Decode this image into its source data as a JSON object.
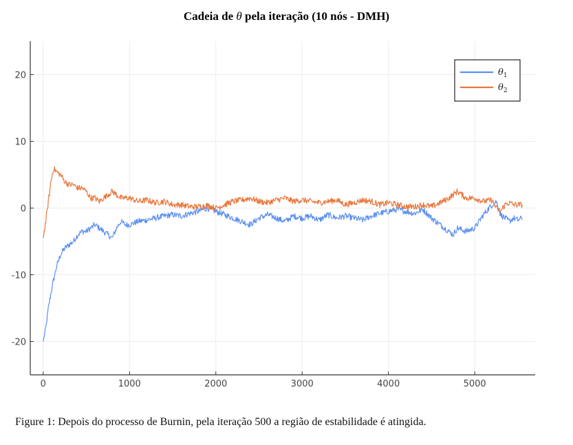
{
  "title_prefix": "Cadeia de ",
  "title_symbol": "θ",
  "title_suffix": " pela iteração (10 nós - DMH)",
  "caption": "Figure 1: Depois do processo de Burnin, pela iteração 500 a região de estabilidade é atingida.",
  "chart_data": {
    "type": "line",
    "title": "Cadeia de θ pela iteração (10 nós - DMH)",
    "xlabel": "",
    "ylabel": "",
    "xlim": [
      -150,
      5700
    ],
    "ylim": [
      -25,
      25
    ],
    "xticks": [
      0,
      1000,
      2000,
      3000,
      4000,
      5000
    ],
    "yticks": [
      -20,
      -10,
      0,
      10,
      20
    ],
    "grid": true,
    "legend_position": "top-right",
    "series": [
      {
        "name": "θ1",
        "name_symbol": "θ",
        "name_sub": "1",
        "color": "#5b8ff0",
        "x": [
          0,
          30,
          60,
          100,
          150,
          200,
          250,
          300,
          350,
          400,
          450,
          500,
          550,
          600,
          650,
          700,
          750,
          800,
          850,
          900,
          950,
          1000,
          1100,
          1200,
          1300,
          1400,
          1500,
          1600,
          1700,
          1800,
          1900,
          2000,
          2100,
          2200,
          2300,
          2400,
          2500,
          2600,
          2700,
          2800,
          2900,
          3000,
          3100,
          3200,
          3300,
          3400,
          3500,
          3600,
          3700,
          3800,
          3900,
          4000,
          4100,
          4200,
          4300,
          4400,
          4500,
          4600,
          4700,
          4750,
          4800,
          4900,
          5000,
          5100,
          5200,
          5250,
          5300,
          5350,
          5400,
          5450,
          5500,
          5550
        ],
        "y": [
          -20,
          -18,
          -15,
          -12,
          -9,
          -7,
          -6,
          -5.5,
          -5,
          -4,
          -3.5,
          -3.5,
          -3,
          -2.5,
          -3,
          -3.5,
          -4,
          -4.5,
          -3,
          -2,
          -2.5,
          -2.5,
          -2,
          -1.8,
          -1.5,
          -1.2,
          -1,
          -1.2,
          -0.8,
          -0.5,
          0,
          -0.5,
          -1,
          -1.5,
          -2,
          -2.5,
          -1.5,
          -1,
          -1.5,
          -2,
          -1.2,
          -1.5,
          -1.2,
          -1.8,
          -1,
          -1.5,
          -1.2,
          -1.5,
          -1.8,
          -1.2,
          -0.8,
          -0.5,
          -0.2,
          -0.5,
          -0.8,
          -0.2,
          -1.5,
          -2.5,
          -3.5,
          -4,
          -3,
          -3.5,
          -3,
          -1,
          0.5,
          1,
          -1,
          -1.5,
          -2,
          -1.5,
          -1.8,
          -1.5
        ]
      },
      {
        "name": "θ2",
        "name_symbol": "θ",
        "name_sub": "2",
        "color": "#e8773d",
        "x": [
          0,
          30,
          60,
          90,
          120,
          150,
          200,
          250,
          300,
          350,
          400,
          450,
          500,
          550,
          600,
          650,
          700,
          750,
          800,
          900,
          1000,
          1100,
          1200,
          1300,
          1400,
          1500,
          1600,
          1700,
          1800,
          1900,
          2000,
          2100,
          2200,
          2300,
          2400,
          2500,
          2600,
          2700,
          2800,
          2900,
          3000,
          3100,
          3200,
          3300,
          3400,
          3500,
          3600,
          3700,
          3800,
          3900,
          4000,
          4100,
          4200,
          4300,
          4400,
          4500,
          4600,
          4700,
          4750,
          4800,
          4900,
          5000,
          5100,
          5200,
          5250,
          5300,
          5350,
          5400,
          5450,
          5500,
          5550
        ],
        "y": [
          -4.5,
          -2,
          1,
          4,
          6,
          5.5,
          5,
          4,
          3.5,
          3.5,
          3,
          3,
          2.5,
          1.5,
          1.5,
          1,
          1.5,
          2,
          2.5,
          1.5,
          1.5,
          1,
          1.2,
          0.8,
          1,
          0.5,
          0.5,
          0.2,
          0.2,
          0.4,
          0,
          0.5,
          1,
          1.2,
          1.5,
          1,
          0.8,
          1.2,
          1.5,
          1,
          1.2,
          1,
          0.8,
          1,
          1.2,
          0.5,
          0.8,
          1.2,
          1,
          0.5,
          0.8,
          0.5,
          0.2,
          0.2,
          0.5,
          0.2,
          0.8,
          1.5,
          2,
          2.5,
          1.5,
          1.5,
          1,
          1.2,
          0,
          -0.5,
          0.5,
          0.8,
          0.5,
          0.5,
          0.5
        ]
      }
    ]
  }
}
